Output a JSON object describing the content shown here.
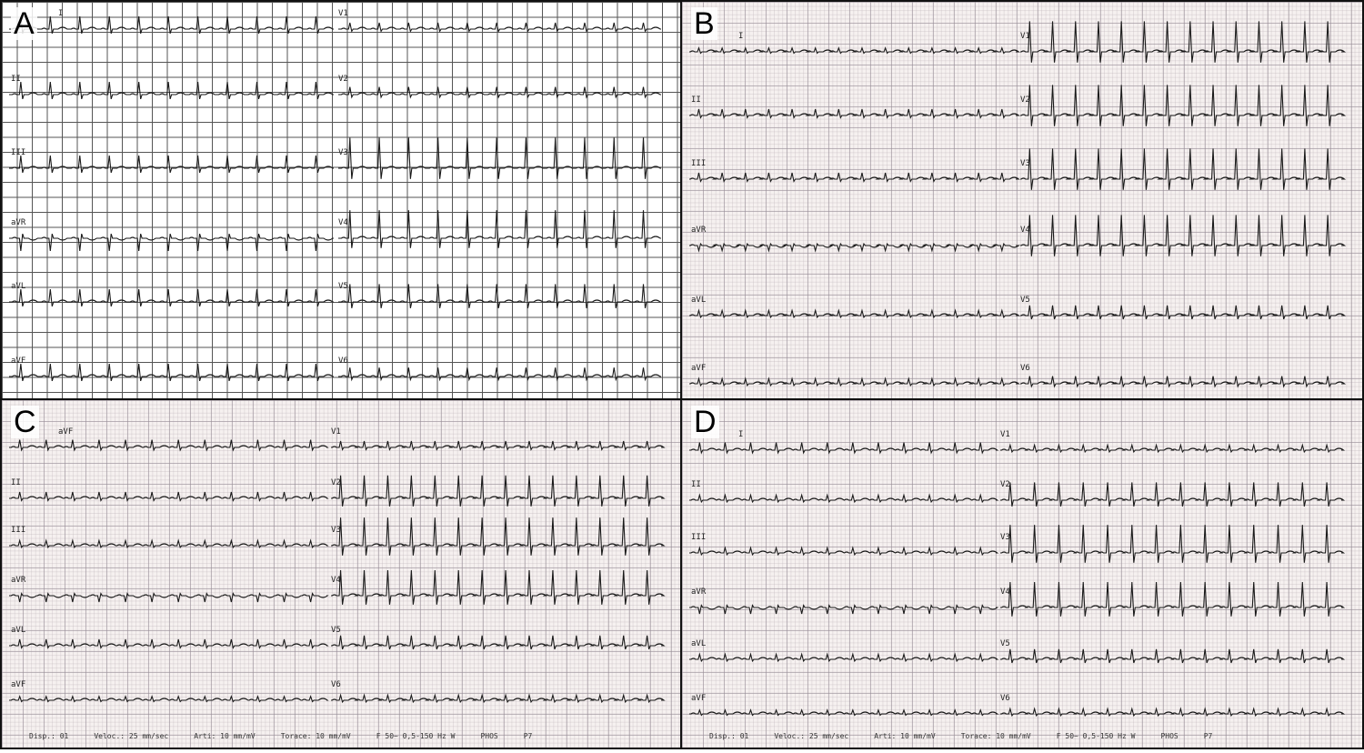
{
  "panels": [
    {
      "letter": "A",
      "style": "white-grid",
      "left_leads": [
        "I",
        "II",
        "III",
        "aVR",
        "aVL",
        "aVF"
      ],
      "right_leads": [
        "V1",
        "V2",
        "V3",
        "V4",
        "V5",
        "V6"
      ]
    },
    {
      "letter": "B",
      "style": "paper",
      "left_leads": [
        "I",
        "II",
        "III",
        "aVR",
        "aVL",
        "aVF"
      ],
      "right_leads": [
        "V1",
        "V2",
        "V3",
        "V4",
        "V5",
        "V6"
      ]
    },
    {
      "letter": "C",
      "style": "paper",
      "left_leads": [
        "aVF",
        "II",
        "III",
        "aVR",
        "aVL",
        "aVF"
      ],
      "right_leads": [
        "V1",
        "V2",
        "V3",
        "V4",
        "V5",
        "V6"
      ],
      "footer": {
        "disp": "Disp.: 01",
        "speed": "Veloc.: 25 mm/sec",
        "limb_gain": "Arti: 10 mm/mV",
        "chest_gain": "Torace: 10 mm/mV",
        "filter": "F 50~ 0,5-150 Hz W",
        "code1": "PHOS",
        "code2": "P7"
      }
    },
    {
      "letter": "D",
      "style": "paper",
      "left_leads": [
        "I",
        "II",
        "III",
        "aVR",
        "aVL",
        "aVF"
      ],
      "right_leads": [
        "V1",
        "V2",
        "V3",
        "V4",
        "V5",
        "V6"
      ],
      "footer": {
        "disp": "Disp.: 01",
        "speed": "Veloc.: 25 mm/sec",
        "limb_gain": "Arti: 10 mm/mV",
        "chest_gain": "Torace: 10 mm/mV",
        "filter": "F 50~ 0,5-150 Hz W",
        "code1": "PHOS",
        "code2": "P7"
      }
    }
  ],
  "colors": {
    "trace": "#1a1a1a",
    "grid_a": "#555555",
    "paper": "#f6f1f0"
  }
}
